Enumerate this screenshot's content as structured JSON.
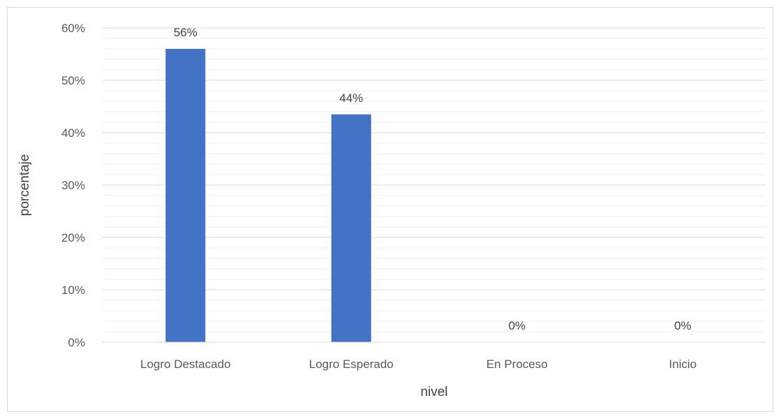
{
  "chart_data": {
    "type": "bar",
    "title": "",
    "xlabel": "nivel",
    "ylabel": "porcentaje",
    "categories": [
      "Logro Destacado",
      "Logro Esperado",
      "En Proceso",
      "Inicio"
    ],
    "values": [
      0.56,
      0.435,
      0,
      0
    ],
    "data_labels": [
      "56%",
      "44%",
      "0%",
      "0%"
    ],
    "ylim": [
      0,
      0.6
    ],
    "y_ticks": [
      0,
      0.1,
      0.2,
      0.3,
      0.4,
      0.5,
      0.6
    ],
    "y_tick_labels": [
      "0%",
      "10%",
      "20%",
      "30%",
      "40%",
      "50%",
      "60%"
    ],
    "grid": true,
    "minor_grid": true,
    "legend": "none",
    "colors": {
      "bar": "#4472c4",
      "major_grid": "#d9d9d9",
      "minor_grid": "#efefef",
      "axis": "#d9d9d9"
    }
  }
}
